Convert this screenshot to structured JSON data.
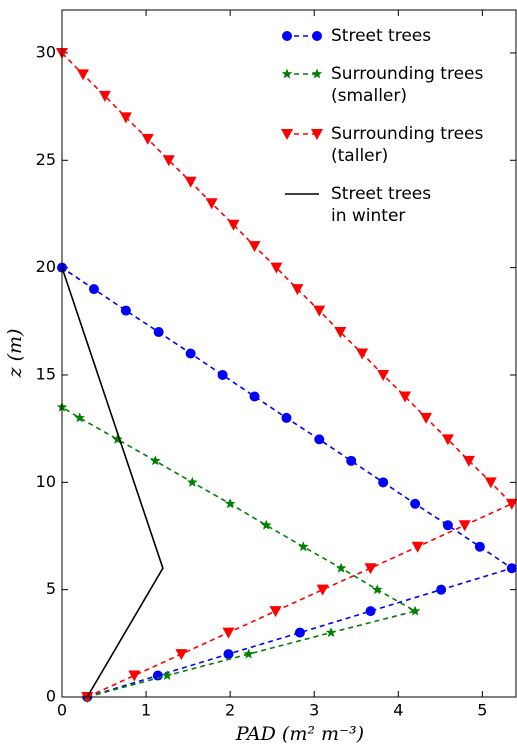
{
  "chart_data": {
    "type": "line",
    "xlabel": "PAD (m² m⁻³)",
    "ylabel": "z (m)",
    "xlim": [
      0,
      5.4
    ],
    "ylim": [
      0,
      32
    ],
    "xticks": [
      0,
      1,
      2,
      3,
      4,
      5
    ],
    "yticks": [
      0,
      5,
      10,
      15,
      20,
      25,
      30
    ],
    "legend": "upper right",
    "series": [
      {
        "name": [
          "Street trees"
        ],
        "color": "#0000ff",
        "marker": "circle",
        "dashed": true,
        "x": [
          0.3,
          1.14,
          1.98,
          2.83,
          3.67,
          4.51,
          5.35,
          4.97,
          4.59,
          4.2,
          3.82,
          3.44,
          3.06,
          2.67,
          2.29,
          1.91,
          1.53,
          1.15,
          0.76,
          0.38,
          0
        ],
        "y": [
          0,
          1,
          2,
          3,
          4,
          5,
          6,
          7,
          8,
          9,
          10,
          11,
          12,
          13,
          14,
          15,
          16,
          17,
          18,
          19,
          20
        ]
      },
      {
        "name": [
          "Surrounding trees",
          "(smaller)"
        ],
        "color": "#008000",
        "marker": "star",
        "dashed": true,
        "x": [
          0.3,
          1.25,
          2.22,
          3.2,
          4.2,
          3.75,
          3.32,
          2.87,
          2.43,
          2.0,
          1.55,
          1.11,
          0.66,
          0.21,
          0
        ],
        "y": [
          0,
          1,
          2,
          3,
          4,
          5,
          6,
          7,
          8,
          9,
          10,
          11,
          12,
          13,
          13.5
        ]
      },
      {
        "name": [
          "Surrounding trees",
          "(taller)"
        ],
        "color": "#ff0000",
        "marker": "triangle-down",
        "dashed": true,
        "x": [
          0.3,
          0.86,
          1.42,
          1.98,
          2.54,
          3.1,
          3.67,
          4.23,
          4.79,
          5.35,
          5.1,
          4.84,
          4.59,
          4.33,
          4.08,
          3.82,
          3.57,
          3.31,
          3.06,
          2.8,
          2.55,
          2.29,
          2.04,
          1.78,
          1.53,
          1.27,
          1.02,
          0.76,
          0.51,
          0.25,
          0
        ],
        "y": [
          0,
          1,
          2,
          3,
          4,
          5,
          6,
          7,
          8,
          9,
          10,
          11,
          12,
          13,
          14,
          15,
          16,
          17,
          18,
          19,
          20,
          21,
          22,
          23,
          24,
          25,
          26,
          27,
          28,
          29,
          30
        ]
      },
      {
        "name": [
          "Street trees",
          "in winter"
        ],
        "color": "#000000",
        "marker": "none",
        "dashed": false,
        "x": [
          0.3,
          1.2,
          0
        ],
        "y": [
          0,
          6,
          20
        ]
      }
    ]
  }
}
